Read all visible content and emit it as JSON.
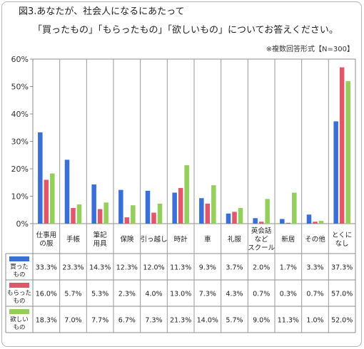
{
  "title_line1": "図3.あなたが、社会人になるにあたって",
  "title_line2": "「買ったもの」「もらったもの」「欲しいもの」についてお答えください。",
  "note": "※複数回答形式【N=300】",
  "chart_data": {
    "type": "bar",
    "categories": [
      "仕事用の服",
      "手帳",
      "筆記用具",
      "保険",
      "引っ越し",
      "時計",
      "車",
      "礼服",
      "英会話などスクール",
      "新居",
      "その他",
      "とくになし"
    ],
    "category_label_lines": [
      [
        "仕事用",
        "の服"
      ],
      [
        "手帳"
      ],
      [
        "筆記",
        "用具"
      ],
      [
        "保険"
      ],
      [
        "引っ越し"
      ],
      [
        "時計"
      ],
      [
        "車"
      ],
      [
        "礼服"
      ],
      [
        "英会話",
        "など",
        "スクール"
      ],
      [
        "新居"
      ],
      [
        "その他"
      ],
      [
        "とくに",
        "なし"
      ]
    ],
    "series": [
      {
        "name": "買ったもの",
        "label_lines": [
          "買った",
          "もの"
        ],
        "color": "#3a6fd8",
        "values": [
          33.3,
          23.3,
          14.3,
          12.3,
          12.0,
          11.3,
          9.3,
          3.7,
          2.0,
          1.7,
          3.3,
          37.3
        ],
        "labels": [
          "33.3%",
          "23.3%",
          "14.3%",
          "12.3%",
          "12.0%",
          "11.3%",
          "9.3%",
          "3.7%",
          "2.0%",
          "1.7%",
          "3.3%",
          "37.3%"
        ]
      },
      {
        "name": "もらったもの",
        "label_lines": [
          "もらった",
          "もの"
        ],
        "color": "#e0566b",
        "values": [
          16.0,
          5.7,
          5.3,
          2.3,
          4.0,
          13.0,
          7.3,
          4.3,
          0.7,
          0.3,
          0.7,
          57.0
        ],
        "labels": [
          "16.0%",
          "5.7%",
          "5.3%",
          "2.3%",
          "4.0%",
          "13.0%",
          "7.3%",
          "4.3%",
          "0.7%",
          "0.3%",
          "0.7%",
          "57.0%"
        ]
      },
      {
        "name": "欲しいもの",
        "label_lines": [
          "欲しい",
          "もの"
        ],
        "color": "#93cf5a",
        "values": [
          18.3,
          7.0,
          7.7,
          6.7,
          7.3,
          21.3,
          14.0,
          5.7,
          9.0,
          11.3,
          1.0,
          52.0
        ],
        "labels": [
          "18.3%",
          "7.0%",
          "7.7%",
          "6.7%",
          "7.3%",
          "21.3%",
          "14.0%",
          "5.7%",
          "9.0%",
          "11.3%",
          "1.0%",
          "52.0%"
        ]
      }
    ],
    "y_ticks": [
      0,
      10,
      20,
      30,
      40,
      50,
      60
    ],
    "y_tick_labels": [
      "0%",
      "10%",
      "20%",
      "30%",
      "40%",
      "50%",
      "60%"
    ],
    "ylim": [
      0,
      60
    ],
    "grid": false,
    "legend_placement": "table-left"
  }
}
